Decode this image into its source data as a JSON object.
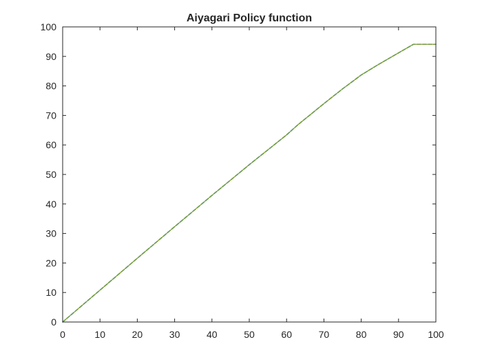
{
  "chart_data": {
    "type": "line",
    "title": "Aiyagari Policy function",
    "xlabel": "",
    "ylabel": "",
    "xlim": [
      0,
      100
    ],
    "ylim": [
      0,
      100
    ],
    "xticks": [
      0,
      10,
      20,
      30,
      40,
      50,
      60,
      70,
      80,
      90,
      100
    ],
    "yticks": [
      0,
      10,
      20,
      30,
      40,
      50,
      60,
      70,
      80,
      90,
      100
    ],
    "grid": false,
    "box": true,
    "series": [
      {
        "color": "#0072BD",
        "dash": "5,3",
        "x": [
          0,
          5,
          10,
          20,
          30,
          40,
          50,
          60,
          63,
          70,
          75,
          80,
          84,
          90,
          94,
          100
        ],
        "y": [
          0,
          5.4,
          10.8,
          21.6,
          32.3,
          42.9,
          53.3,
          63.4,
          66.8,
          74.0,
          79.0,
          83.7,
          86.8,
          91.2,
          94.1,
          94.1
        ]
      },
      {
        "color": "#D95319",
        "dash": "",
        "x": [
          0,
          5,
          10,
          20,
          30,
          40,
          50,
          60,
          63,
          70,
          75,
          80,
          84,
          90,
          94,
          100
        ],
        "y": [
          0,
          5.4,
          10.8,
          21.6,
          32.3,
          42.9,
          53.3,
          63.4,
          66.8,
          74.0,
          79.0,
          83.7,
          86.8,
          91.2,
          94.1,
          94.1
        ]
      },
      {
        "color": "#77AC30",
        "dash": "",
        "x": [
          0,
          5,
          10,
          20,
          30,
          40,
          50,
          60,
          63,
          70,
          75,
          80,
          84,
          90,
          94,
          100
        ],
        "y": [
          0,
          5.4,
          10.8,
          21.6,
          32.3,
          42.9,
          53.3,
          63.4,
          66.8,
          74.0,
          79.0,
          83.7,
          86.8,
          91.2,
          94.1,
          94.1
        ]
      }
    ]
  }
}
